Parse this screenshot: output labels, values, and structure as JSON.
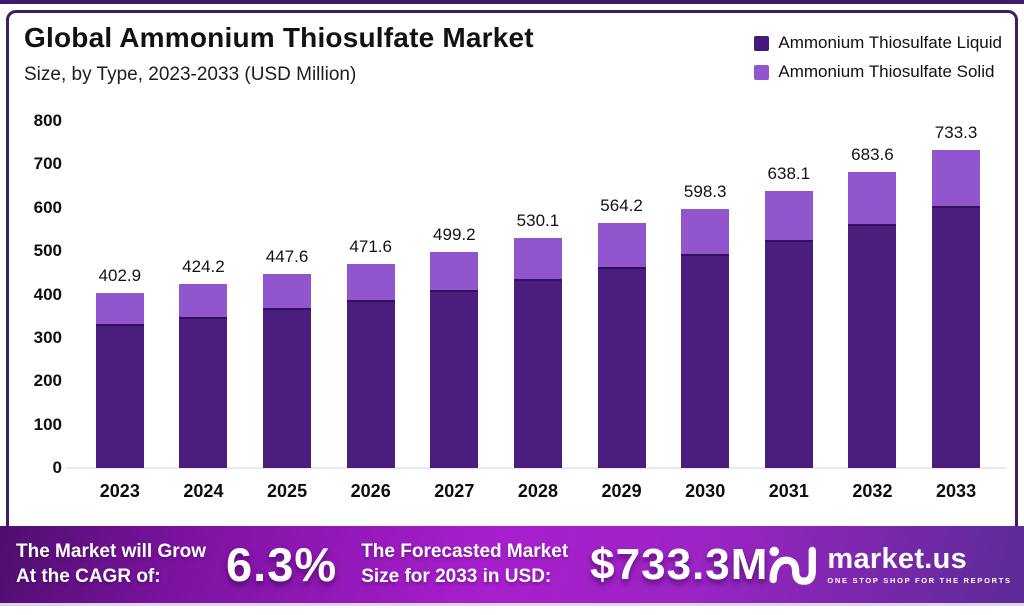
{
  "header": {
    "title": "Global Ammonium Thiosulfate Market",
    "subtitle": "Size, by Type, 2023-2033 (USD Million)"
  },
  "legend": {
    "items": [
      {
        "label": "Ammonium Thiosulfate Liquid",
        "color": "#45197b"
      },
      {
        "label": "Ammonium Thiosulfate Solid",
        "color": "#9156cd"
      }
    ]
  },
  "chart_data": {
    "type": "bar",
    "stacked": true,
    "title": "Global Ammonium Thiosulfate Market Size, by Type, 2023-2033 (USD Million)",
    "categories": [
      "2023",
      "2024",
      "2025",
      "2026",
      "2027",
      "2028",
      "2029",
      "2030",
      "2031",
      "2032",
      "2033"
    ],
    "series": [
      {
        "name": "Ammonium Thiosulfate Liquid",
        "color": "#4b1d7f",
        "values": [
          331.6,
          349.1,
          368.4,
          388.1,
          410.8,
          436.3,
          464.3,
          492.4,
          525.2,
          562.6,
          603.5
        ]
      },
      {
        "name": "Ammonium Thiosulfate Solid",
        "color": "#9156cd",
        "values": [
          71.3,
          75.1,
          79.2,
          83.5,
          88.4,
          93.8,
          99.9,
          105.9,
          112.9,
          121.0,
          129.8
        ]
      }
    ],
    "totals": [
      402.9,
      424.2,
      447.6,
      471.6,
      499.2,
      530.1,
      564.2,
      598.3,
      638.1,
      683.6,
      733.3
    ],
    "total_labels": [
      "402.9",
      "424.2",
      "447.6",
      "471.6",
      "499.2",
      "530.1",
      "564.2",
      "598.3",
      "638.1",
      "683.6",
      "733.3"
    ],
    "xlabel": "",
    "ylabel": "",
    "ylim": [
      0,
      800
    ],
    "yticks": [
      0,
      100,
      200,
      300,
      400,
      500,
      600,
      700,
      800
    ],
    "grid": false,
    "legend_position": "top-right"
  },
  "banner": {
    "cagr_label": [
      "The Market will Grow",
      "At the CAGR of:"
    ],
    "cagr_value": "6.3%",
    "forecast_label": [
      "The Forecasted Market",
      "Size for 2033 in USD:"
    ],
    "forecast_value": "$733.3M",
    "logo": {
      "name": "market.us",
      "tagline": "ONE STOP SHOP FOR THE REPORTS"
    }
  },
  "colors": {
    "liquid": "#4b1d7f",
    "solid": "#9156cd",
    "frame": "#372063",
    "banner_gradient": [
      "#4e0f6e",
      "#a81fce",
      "#5b2b96"
    ]
  }
}
